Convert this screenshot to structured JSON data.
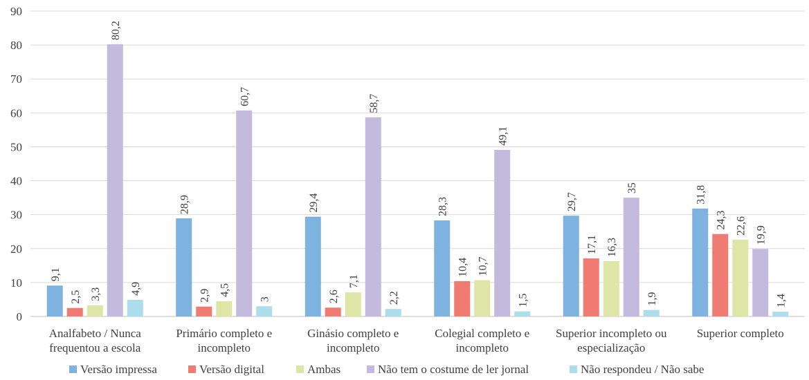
{
  "chart_data": {
    "type": "bar",
    "title": "",
    "xlabel": "",
    "ylabel": "",
    "ylim": [
      0,
      90
    ],
    "ytick_step": 10,
    "yticks": [
      "0",
      "10",
      "20",
      "30",
      "40",
      "50",
      "60",
      "70",
      "80",
      "90"
    ],
    "grid": true,
    "legend_position": "bottom",
    "categories": [
      [
        "Analfabeto / Nunca",
        "frequentou a escola"
      ],
      [
        "Primário completo e",
        "incompleto"
      ],
      [
        "Ginásio completo e",
        "incompleto"
      ],
      [
        "Colegial completo e",
        "incompleto"
      ],
      [
        "Superior incompleto ou",
        "especialização"
      ],
      [
        "Superior completo"
      ]
    ],
    "series": [
      {
        "name": "Versão impressa",
        "color": "#7EB3E0",
        "values": [
          9.1,
          28.9,
          29.4,
          28.3,
          29.7,
          31.8
        ],
        "labels": [
          "9,1",
          "28,9",
          "29,4",
          "28,3",
          "29,7",
          "31,8"
        ]
      },
      {
        "name": "Versão digital",
        "color": "#F07B72",
        "values": [
          2.5,
          2.9,
          2.6,
          10.4,
          17.1,
          24.3
        ],
        "labels": [
          "2,5",
          "2,9",
          "2,6",
          "10,4",
          "17,1",
          "24,3"
        ]
      },
      {
        "name": "Ambas",
        "color": "#DDE6A6",
        "values": [
          3.3,
          4.5,
          7.1,
          10.7,
          16.3,
          22.6
        ],
        "labels": [
          "3,3",
          "4,5",
          "7,1",
          "10,7",
          "16,3",
          "22,6"
        ]
      },
      {
        "name": "Não tem o costume de ler jornal",
        "color": "#C3BADD",
        "values": [
          80.2,
          60.7,
          58.7,
          49.1,
          35,
          19.9
        ],
        "labels": [
          "80,2",
          "60,7",
          "58,7",
          "49,1",
          "35",
          "19,9"
        ]
      },
      {
        "name": "Não respondeu / Não sabe",
        "color": "#ACDDEB",
        "values": [
          4.9,
          3,
          2.2,
          1.5,
          1.9,
          1.4
        ],
        "labels": [
          "4,9",
          "3",
          "2,2",
          "1,5",
          "1,9",
          "1,4"
        ]
      }
    ]
  }
}
